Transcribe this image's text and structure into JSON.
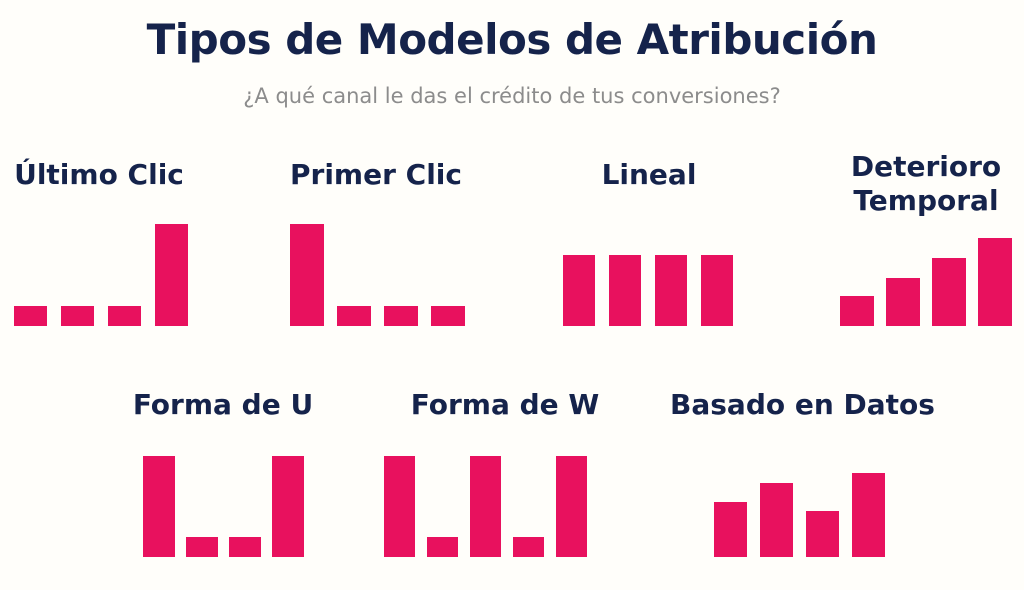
{
  "page": {
    "title": "Tipos de Modelos de Atribución",
    "subtitle": "¿A qué canal le das el crédito de tus conversiones?"
  },
  "colors": {
    "bar": "#E8115E",
    "title": "#15234B",
    "subtitle": "#8C8C8C",
    "background": "#FFFEFA"
  },
  "chart_data": [
    {
      "type": "bar",
      "title": "Último Clic",
      "values": [
        20,
        20,
        20,
        100
      ],
      "ylim": [
        0,
        100
      ],
      "grid": false,
      "legend": false,
      "values_are": "bar height as % of tallest bar"
    },
    {
      "type": "bar",
      "title": "Primer Clic",
      "values": [
        100,
        20,
        20,
        20
      ],
      "ylim": [
        0,
        100
      ],
      "grid": false,
      "legend": false,
      "values_are": "bar height as % of tallest bar"
    },
    {
      "type": "bar",
      "title": "Lineal",
      "values": [
        70,
        70,
        70,
        70
      ],
      "ylim": [
        0,
        100
      ],
      "grid": false,
      "legend": false,
      "values_are": "bar height as % of tallest bar"
    },
    {
      "type": "bar",
      "title": "Deterioro Temporal",
      "values": [
        29,
        47,
        67,
        86
      ],
      "ylim": [
        0,
        100
      ],
      "grid": false,
      "legend": false,
      "values_are": "bar height as % of tallest bar"
    },
    {
      "type": "bar",
      "title": "Forma de U",
      "values": [
        100,
        20,
        20,
        100
      ],
      "ylim": [
        0,
        100
      ],
      "grid": false,
      "legend": false,
      "values_are": "bar height as % of tallest bar"
    },
    {
      "type": "bar",
      "title": "Forma de W",
      "values": [
        100,
        20,
        100,
        20,
        100
      ],
      "ylim": [
        0,
        100
      ],
      "grid": false,
      "legend": false,
      "values_are": "bar height as % of tallest bar"
    },
    {
      "type": "bar",
      "title": "Basado en Datos",
      "values": [
        54,
        73,
        46,
        83
      ],
      "ylim": [
        0,
        100
      ],
      "grid": false,
      "legend": false,
      "values_are": "bar height as % of tallest bar"
    }
  ]
}
